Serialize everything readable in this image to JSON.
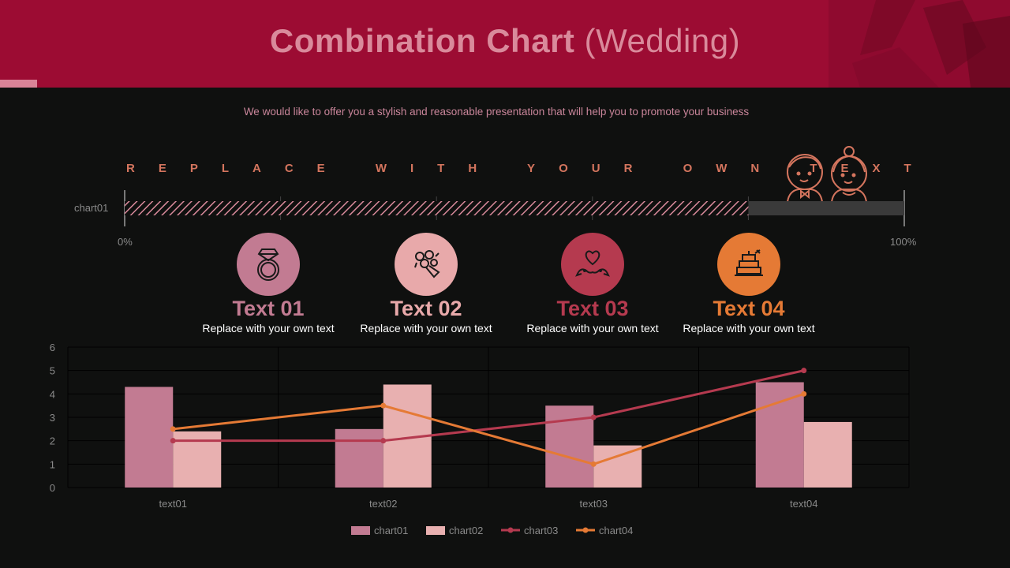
{
  "header": {
    "title_bold": "Combination Chart",
    "title_rest": "(Wedding)",
    "subtitle": "We would like to offer you a stylish and reasonable presentation that will help you to promote your business"
  },
  "tagline": "REPLACE WITH YOUR OWN TEXT",
  "progress": {
    "label": "chart01",
    "value": 0.8,
    "min_label": "0%",
    "max_label": "100%"
  },
  "features": [
    {
      "title": "Text 01",
      "desc": "Replace with your own text",
      "color": "#c27b92",
      "icon": "ring-icon"
    },
    {
      "title": "Text 02",
      "desc": "Replace with your own text",
      "color": "#e8a9aa",
      "icon": "bouquet-icon"
    },
    {
      "title": "Text 03",
      "desc": "Replace with your own text",
      "color": "#b53a4f",
      "icon": "heart-birds-icon"
    },
    {
      "title": "Text 04",
      "desc": "Replace with your own text",
      "color": "#e57a35",
      "icon": "wedding-cake-icon"
    }
  ],
  "colors": {
    "header": "#9c0c33",
    "chart01": "#c27b92",
    "chart02": "#e8b0b0",
    "chart03": "#b53a4f",
    "chart04": "#e57a35"
  },
  "chart_data": {
    "type": "bar",
    "categories": [
      "text01",
      "text02",
      "text03",
      "text04"
    ],
    "series": [
      {
        "name": "chart01",
        "type": "bar",
        "values": [
          4.3,
          2.5,
          3.5,
          4.5
        ]
      },
      {
        "name": "chart02",
        "type": "bar",
        "values": [
          2.4,
          4.4,
          1.8,
          2.8
        ]
      },
      {
        "name": "chart03",
        "type": "line",
        "values": [
          2.0,
          2.0,
          3.0,
          5.0
        ]
      },
      {
        "name": "chart04",
        "type": "line",
        "values": [
          2.5,
          3.5,
          1.0,
          4.0
        ]
      }
    ],
    "y_ticks": [
      0,
      1,
      2,
      3,
      4,
      5,
      6
    ],
    "ylim": [
      0,
      6
    ],
    "grid": true,
    "legend": "bottom"
  }
}
